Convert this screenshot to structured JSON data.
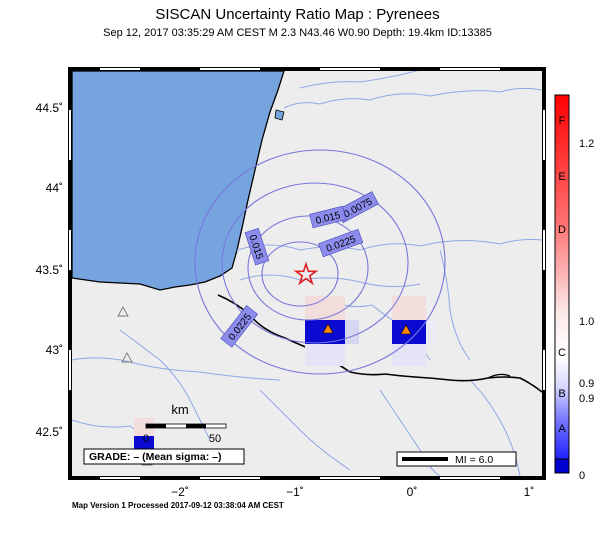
{
  "header": {
    "title": "SISCAN Uncertainty Ratio Map : Pyrenees",
    "event_info": "Sep 12, 2017 03:35:29 AM CEST   M 2.3   N43.46 W0.90   Depth: 19.4km   ID:13385"
  },
  "map": {
    "y_ticks": [
      "44.5˚",
      "44˚",
      "43.5˚",
      "43˚",
      "42.5˚"
    ],
    "x_ticks": [
      "−2˚",
      "−1˚",
      "0˚",
      "1˚"
    ],
    "contour_labels": [
      "0.0075",
      "0.015",
      "0.0225",
      "0.015",
      "0.0225"
    ],
    "scale_bar": {
      "unit": "km",
      "start": "0",
      "end": "50"
    },
    "grade_text": "GRADE: – (Mean sigma: –)",
    "mi_text": "MI = 6.0",
    "colors": {
      "sea": "#76a4de",
      "land": "#ededed",
      "contour": "#7777dd",
      "epicenter": "#e02020",
      "station": "#ff8800",
      "cell_dark": "#0a0ad0"
    },
    "icons": [
      "star-icon",
      "triangle-icon"
    ]
  },
  "colorbar": {
    "letters": [
      "F",
      "E",
      "D",
      "C",
      "B",
      "A"
    ],
    "values": [
      "1.2",
      "1.0",
      "0.9",
      "0.9",
      "0"
    ]
  },
  "footer": {
    "text": "Map Version 1 Processed 2017-09-12 03:38:04 AM CEST"
  }
}
